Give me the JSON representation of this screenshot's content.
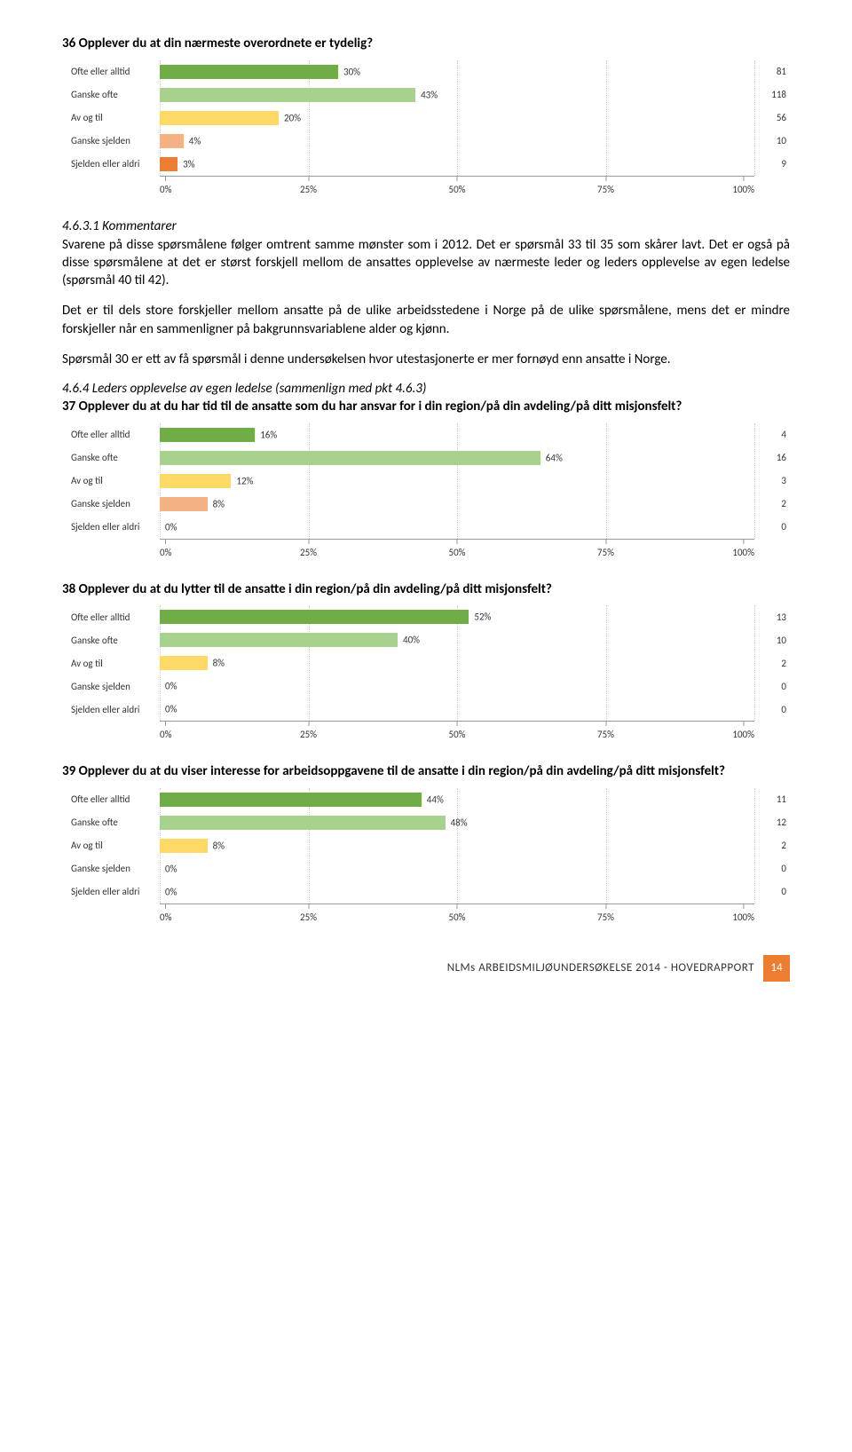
{
  "q36": {
    "title": "36 Opplever du at din nærmeste overordnete er tydelig?",
    "categories": [
      "Ofte eller alltid",
      "Ganske ofte",
      "Av og til",
      "Ganske sjelden",
      "Sjelden eller aldri"
    ],
    "values": [
      30,
      43,
      20,
      4,
      3
    ],
    "counts": [
      81,
      118,
      56,
      10,
      9
    ],
    "colors": [
      "#70ad47",
      "#a9d18e",
      "#ffd966",
      "#f4b183",
      "#ed7d31"
    ],
    "ticks": [
      0,
      25,
      50,
      75,
      100
    ]
  },
  "commentary": {
    "heading": "4.6.3.1 Kommentarer",
    "p1": "Svarene på disse spørsmålene følger omtrent samme mønster som i 2012. Det er spørsmål 33 til 35 som skårer lavt. Det er også på disse spørsmålene at det er størst forskjell mellom de ansattes opplevelse av nærmeste leder og leders opplevelse av egen ledelse (spørsmål 40 til 42).",
    "p2": "Det er til dels store forskjeller mellom ansatte på de ulike arbeidsstedene i Norge på de ulike spørsmålene, mens det er mindre forskjeller når en sammenligner på bakgrunnsvariablene alder og kjønn.",
    "p3": "Spørsmål 30 er ett av få spørsmål i denne undersøkelsen hvor utestasjonerte er mer fornøyd enn ansatte i Norge."
  },
  "section464": {
    "heading": "4.6.4    Leders opplevelse av egen ledelse (sammenlign med pkt 4.6.3)"
  },
  "q37": {
    "title": "37 Opplever du at du har tid til de ansatte som du har ansvar for i din region/på din avdeling/på ditt misjonsfelt?",
    "categories": [
      "Ofte eller alltid",
      "Ganske ofte",
      "Av og til",
      "Ganske sjelden",
      "Sjelden eller aldri"
    ],
    "values": [
      16,
      64,
      12,
      8,
      0
    ],
    "counts": [
      4,
      16,
      3,
      2,
      0
    ],
    "colors": [
      "#70ad47",
      "#a9d18e",
      "#ffd966",
      "#f4b183",
      "#ed7d31"
    ],
    "ticks": [
      0,
      25,
      50,
      75,
      100
    ]
  },
  "q38": {
    "title": "38 Opplever du at du lytter til de ansatte i din region/på din avdeling/på ditt misjonsfelt?",
    "categories": [
      "Ofte eller alltid",
      "Ganske ofte",
      "Av og til",
      "Ganske sjelden",
      "Sjelden eller aldri"
    ],
    "values": [
      52,
      40,
      8,
      0,
      0
    ],
    "counts": [
      13,
      10,
      2,
      0,
      0
    ],
    "colors": [
      "#70ad47",
      "#a9d18e",
      "#ffd966",
      "#f4b183",
      "#ed7d31"
    ],
    "ticks": [
      0,
      25,
      50,
      75,
      100
    ]
  },
  "q39": {
    "title": "39 Opplever du at du viser interesse for arbeidsoppgavene til de ansatte i din region/på din avdeling/på ditt misjonsfelt?",
    "categories": [
      "Ofte eller alltid",
      "Ganske ofte",
      "Av og til",
      "Ganske sjelden",
      "Sjelden eller aldri"
    ],
    "values": [
      44,
      48,
      8,
      0,
      0
    ],
    "counts": [
      11,
      12,
      2,
      0,
      0
    ],
    "colors": [
      "#70ad47",
      "#a9d18e",
      "#ffd966",
      "#f4b183",
      "#ed7d31"
    ],
    "ticks": [
      0,
      25,
      50,
      75,
      100
    ]
  },
  "footer": {
    "text": "NLMs ARBEIDSMILJØUNDERSØKELSE 2014 - HOVEDRAPPORT",
    "page": "14"
  }
}
